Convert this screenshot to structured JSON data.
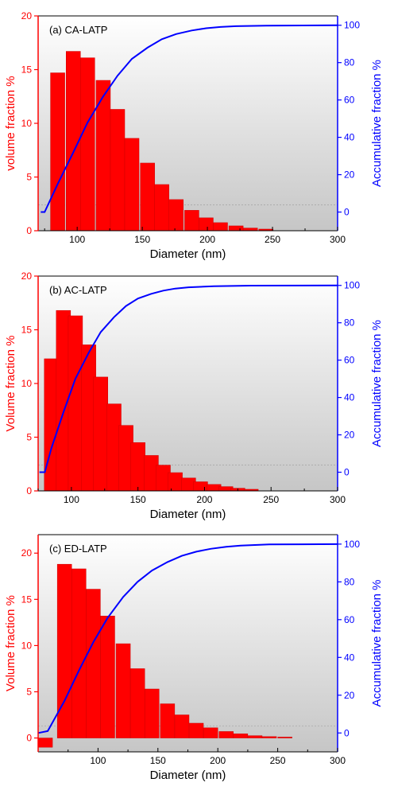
{
  "colors": {
    "bar": "#ff0000",
    "bar_stroke": "#cc0000",
    "curve": "#0000ff",
    "left_axis": "#ff0000",
    "right_axis": "#0000ff"
  },
  "chart_data": [
    {
      "type": "bar",
      "panel_label": "(a)  CA-LATP",
      "xlabel": "Diameter (nm)",
      "ylabel_left": "volume fraction %",
      "ylabel_right": "Accumulative fraction %",
      "x_ticks": [
        "100",
        "150",
        "200",
        "250",
        "300"
      ],
      "y_left_ticks": [
        "0",
        "5",
        "10",
        "15",
        "20"
      ],
      "y_right_ticks": [
        "0",
        "20",
        "40",
        "60",
        "80",
        "100"
      ],
      "bars": [
        {
          "x": 85,
          "value": 14.7
        },
        {
          "x": 97,
          "value": 16.7
        },
        {
          "x": 108,
          "value": 16.1
        },
        {
          "x": 120,
          "value": 14.0
        },
        {
          "x": 131,
          "value": 11.3
        },
        {
          "x": 142,
          "value": 8.6
        },
        {
          "x": 154,
          "value": 6.3
        },
        {
          "x": 165,
          "value": 4.3
        },
        {
          "x": 176,
          "value": 2.9
        },
        {
          "x": 188,
          "value": 1.9
        },
        {
          "x": 199,
          "value": 1.2
        },
        {
          "x": 210,
          "value": 0.75
        },
        {
          "x": 222,
          "value": 0.45
        },
        {
          "x": 233,
          "value": 0.25
        },
        {
          "x": 245,
          "value": 0.15
        }
      ],
      "cumulative": [
        {
          "x": 72,
          "y": 0
        },
        {
          "x": 75,
          "y": 0
        },
        {
          "x": 85,
          "y": 15
        },
        {
          "x": 97,
          "y": 32
        },
        {
          "x": 108,
          "y": 48
        },
        {
          "x": 120,
          "y": 62
        },
        {
          "x": 131,
          "y": 73
        },
        {
          "x": 142,
          "y": 82
        },
        {
          "x": 154,
          "y": 88
        },
        {
          "x": 165,
          "y": 92.5
        },
        {
          "x": 176,
          "y": 95.3
        },
        {
          "x": 188,
          "y": 97.2
        },
        {
          "x": 199,
          "y": 98.4
        },
        {
          "x": 210,
          "y": 99.1
        },
        {
          "x": 222,
          "y": 99.5
        },
        {
          "x": 245,
          "y": 99.8
        },
        {
          "x": 300,
          "y": 100
        }
      ],
      "xlim": [
        70,
        300
      ],
      "ylim_left": [
        0,
        20
      ],
      "ylim_right": [
        -10,
        105
      ]
    },
    {
      "type": "bar",
      "panel_label": "(b)  AC-LATP",
      "xlabel": "Diameter (nm)",
      "ylabel_left": "Volume fraction %",
      "ylabel_right": "Accumulative fraction %",
      "x_ticks": [
        "100",
        "150",
        "200",
        "250",
        "300"
      ],
      "y_left_ticks": [
        "0",
        "5",
        "10",
        "15",
        "20"
      ],
      "y_right_ticks": [
        "0",
        "20",
        "40",
        "60",
        "80",
        "100"
      ],
      "bars": [
        {
          "x": 85,
          "value": 12.3
        },
        {
          "x": 94,
          "value": 16.8
        },
        {
          "x": 103,
          "value": 16.3
        },
        {
          "x": 113,
          "value": 13.6
        },
        {
          "x": 122,
          "value": 10.6
        },
        {
          "x": 132,
          "value": 8.1
        },
        {
          "x": 141,
          "value": 6.1
        },
        {
          "x": 150,
          "value": 4.5
        },
        {
          "x": 160,
          "value": 3.3
        },
        {
          "x": 169,
          "value": 2.4
        },
        {
          "x": 178,
          "value": 1.7
        },
        {
          "x": 188,
          "value": 1.2
        },
        {
          "x": 197,
          "value": 0.85
        },
        {
          "x": 207,
          "value": 0.6
        },
        {
          "x": 216,
          "value": 0.4
        },
        {
          "x": 225,
          "value": 0.25
        },
        {
          "x": 235,
          "value": 0.15
        }
      ],
      "cumulative": [
        {
          "x": 76,
          "y": 0
        },
        {
          "x": 80,
          "y": 0
        },
        {
          "x": 85,
          "y": 13
        },
        {
          "x": 94,
          "y": 32
        },
        {
          "x": 103,
          "y": 50
        },
        {
          "x": 113,
          "y": 64
        },
        {
          "x": 122,
          "y": 75
        },
        {
          "x": 132,
          "y": 83
        },
        {
          "x": 141,
          "y": 89
        },
        {
          "x": 150,
          "y": 93
        },
        {
          "x": 160,
          "y": 95.5
        },
        {
          "x": 169,
          "y": 97.2
        },
        {
          "x": 178,
          "y": 98.3
        },
        {
          "x": 188,
          "y": 99
        },
        {
          "x": 207,
          "y": 99.6
        },
        {
          "x": 235,
          "y": 99.9
        },
        {
          "x": 300,
          "y": 100
        }
      ],
      "xlim": [
        75,
        300
      ],
      "ylim_left": [
        0,
        20
      ],
      "ylim_right": [
        -10,
        105
      ]
    },
    {
      "type": "bar",
      "panel_label": "(c)  ED-LATP",
      "xlabel": "Diameter (nm)",
      "ylabel_left": "Volume fraction %",
      "ylabel_right": "Accumulative fraction %",
      "x_ticks": [
        "100",
        "150",
        "200",
        "250",
        "300"
      ],
      "y_left_ticks": [
        "0",
        "5",
        "10",
        "15",
        "20"
      ],
      "y_right_ticks": [
        "0",
        "20",
        "40",
        "60",
        "80",
        "100"
      ],
      "bars": [
        {
          "x": 56,
          "value": -1.0
        },
        {
          "x": 72,
          "value": 18.8
        },
        {
          "x": 84,
          "value": 18.3
        },
        {
          "x": 96,
          "value": 16.1
        },
        {
          "x": 108,
          "value": 13.2
        },
        {
          "x": 121,
          "value": 10.2
        },
        {
          "x": 133,
          "value": 7.5
        },
        {
          "x": 145,
          "value": 5.3
        },
        {
          "x": 158,
          "value": 3.7
        },
        {
          "x": 170,
          "value": 2.5
        },
        {
          "x": 182,
          "value": 1.6
        },
        {
          "x": 194,
          "value": 1.1
        },
        {
          "x": 207,
          "value": 0.7
        },
        {
          "x": 219,
          "value": 0.45
        },
        {
          "x": 231,
          "value": 0.25
        },
        {
          "x": 243,
          "value": 0.15
        },
        {
          "x": 256,
          "value": 0.1
        }
      ],
      "cumulative": [
        {
          "x": 50,
          "y": 0
        },
        {
          "x": 58,
          "y": 1
        },
        {
          "x": 72,
          "y": 17
        },
        {
          "x": 84,
          "y": 33
        },
        {
          "x": 96,
          "y": 48
        },
        {
          "x": 108,
          "y": 61
        },
        {
          "x": 121,
          "y": 72
        },
        {
          "x": 133,
          "y": 80
        },
        {
          "x": 145,
          "y": 86
        },
        {
          "x": 158,
          "y": 90.5
        },
        {
          "x": 170,
          "y": 93.8
        },
        {
          "x": 182,
          "y": 96
        },
        {
          "x": 194,
          "y": 97.5
        },
        {
          "x": 207,
          "y": 98.6
        },
        {
          "x": 219,
          "y": 99.2
        },
        {
          "x": 243,
          "y": 99.8
        },
        {
          "x": 300,
          "y": 100
        }
      ],
      "xlim": [
        50,
        300
      ],
      "ylim_left": [
        -1.5,
        22
      ],
      "ylim_right": [
        -10,
        105
      ]
    }
  ]
}
